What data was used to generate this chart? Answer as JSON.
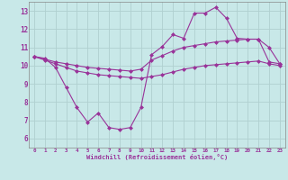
{
  "xlabel": "Windchill (Refroidissement éolien,°C)",
  "background_color": "#c8e8e8",
  "grid_color": "#b0d0d0",
  "line_color": "#993399",
  "x_values": [
    0,
    1,
    2,
    3,
    4,
    5,
    6,
    7,
    8,
    9,
    10,
    11,
    12,
    13,
    14,
    15,
    16,
    17,
    18,
    19,
    20,
    21,
    22,
    23
  ],
  "line1": [
    10.5,
    10.4,
    9.9,
    8.8,
    7.7,
    6.9,
    7.4,
    6.6,
    6.5,
    6.6,
    7.7,
    10.6,
    11.05,
    11.7,
    11.5,
    12.88,
    12.88,
    13.2,
    12.6,
    11.5,
    11.45,
    11.45,
    11.0,
    10.1
  ],
  "line2": [
    10.5,
    10.35,
    10.2,
    10.1,
    10.0,
    9.9,
    9.85,
    9.8,
    9.75,
    9.7,
    9.8,
    10.3,
    10.55,
    10.8,
    11.0,
    11.1,
    11.2,
    11.3,
    11.35,
    11.4,
    11.45,
    11.45,
    10.2,
    10.1
  ],
  "line3": [
    10.5,
    10.3,
    10.1,
    9.9,
    9.7,
    9.6,
    9.5,
    9.45,
    9.4,
    9.35,
    9.3,
    9.4,
    9.5,
    9.65,
    9.8,
    9.9,
    10.0,
    10.05,
    10.1,
    10.15,
    10.2,
    10.25,
    10.1,
    10.0
  ],
  "ylim": [
    5.5,
    13.5
  ],
  "xlim": [
    -0.5,
    23.5
  ],
  "yticks": [
    6,
    7,
    8,
    9,
    10,
    11,
    12,
    13
  ],
  "xticks": [
    0,
    1,
    2,
    3,
    4,
    5,
    6,
    7,
    8,
    9,
    10,
    11,
    12,
    13,
    14,
    15,
    16,
    17,
    18,
    19,
    20,
    21,
    22,
    23
  ],
  "tick_color": "#993399",
  "label_color": "#993399"
}
